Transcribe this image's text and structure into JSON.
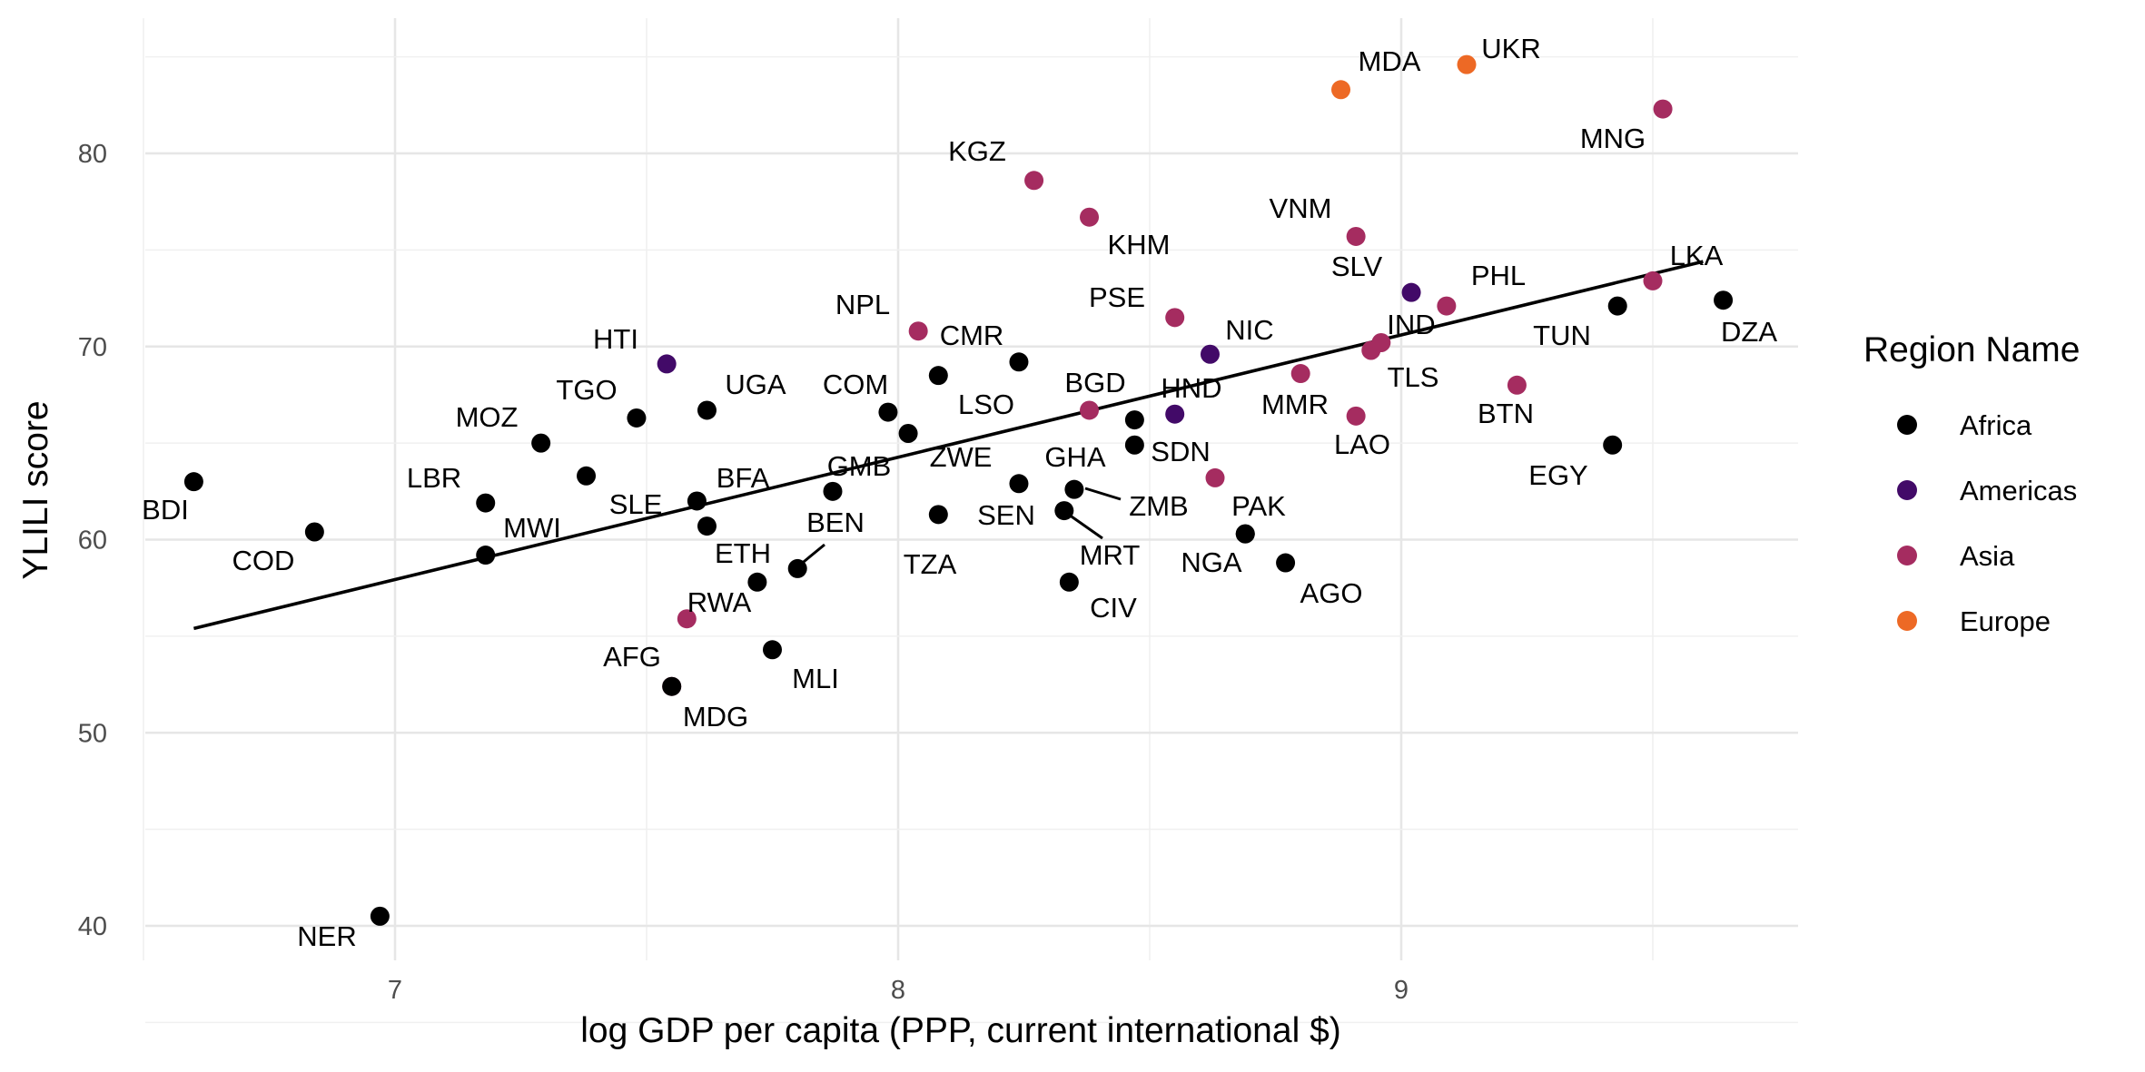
{
  "chart_data": {
    "type": "scatter",
    "title": "",
    "xlabel": "log GDP per capita (PPP, current international $)",
    "ylabel": "YLILI score",
    "xlim": [
      6.5,
      9.8
    ],
    "ylim": [
      39,
      87
    ],
    "x_ticks": [
      7,
      8,
      9
    ],
    "y_ticks": [
      40,
      50,
      60,
      70,
      80
    ],
    "grid": true,
    "legend": {
      "title": "Region Name",
      "position": "right",
      "entries": [
        {
          "name": "Africa",
          "color": "#000000"
        },
        {
          "name": "Americas",
          "color": "#420a68"
        },
        {
          "name": "Asia",
          "color": "#a52c60"
        },
        {
          "name": "Europe",
          "color": "#ed6925"
        }
      ]
    },
    "trend_line": {
      "x": [
        6.6,
        9.6
      ],
      "y": [
        55.4,
        74.4
      ]
    },
    "points": [
      {
        "label": "BDI",
        "region": "Africa",
        "x": 6.6,
        "y": 63.0
      },
      {
        "label": "COD",
        "region": "Africa",
        "x": 6.84,
        "y": 60.4
      },
      {
        "label": "NER",
        "region": "Africa",
        "x": 6.97,
        "y": 40.5
      },
      {
        "label": "LBR",
        "region": "Africa",
        "x": 7.18,
        "y": 61.9
      },
      {
        "label": "MWI",
        "region": "Africa",
        "x": 7.18,
        "y": 59.2
      },
      {
        "label": "MOZ",
        "region": "Africa",
        "x": 7.29,
        "y": 65.0
      },
      {
        "label": "SLE",
        "region": "Africa",
        "x": 7.38,
        "y": 63.3
      },
      {
        "label": "TGO",
        "region": "Africa",
        "x": 7.48,
        "y": 66.3
      },
      {
        "label": "HTI",
        "region": "Americas",
        "x": 7.54,
        "y": 69.1
      },
      {
        "label": "AFG",
        "region": "Asia",
        "x": 7.55,
        "y": 52.4
      },
      {
        "label": "RWA",
        "region": "Asia",
        "x": 7.58,
        "y": 55.9
      },
      {
        "label": "MDG",
        "region": "Africa",
        "x": 7.55,
        "y": 52.4
      },
      {
        "label": "BFA",
        "region": "Africa",
        "x": 7.6,
        "y": 62.0
      },
      {
        "label": "UGA",
        "region": "Africa",
        "x": 7.62,
        "y": 66.7
      },
      {
        "label": "ETH",
        "region": "Africa",
        "x": 7.62,
        "y": 60.7
      },
      {
        "label": "MLI",
        "region": "Africa",
        "x": 7.75,
        "y": 54.3
      },
      {
        "label": "ETH",
        "region": "Africa",
        "x": 7.72,
        "y": 57.8
      },
      {
        "label": "BEN",
        "region": "Africa",
        "x": 7.8,
        "y": 58.5
      },
      {
        "label": "GMB",
        "region": "Africa",
        "x": 7.87,
        "y": 62.5
      },
      {
        "label": "COM",
        "region": "Africa",
        "x": 7.98,
        "y": 66.6
      },
      {
        "label": "NPL",
        "region": "Asia",
        "x": 8.04,
        "y": 70.8
      },
      {
        "label": "ZWE",
        "region": "Africa",
        "x": 8.02,
        "y": 65.5
      },
      {
        "label": "LSO",
        "region": "Africa",
        "x": 8.08,
        "y": 68.5
      },
      {
        "label": "TZA",
        "region": "Africa",
        "x": 8.08,
        "y": 61.3
      },
      {
        "label": "CMR",
        "region": "Africa",
        "x": 8.24,
        "y": 69.2
      },
      {
        "label": "GHA",
        "region": "Africa",
        "x": 8.24,
        "y": 62.9
      },
      {
        "label": "KGZ",
        "region": "Asia",
        "x": 8.27,
        "y": 78.6
      },
      {
        "label": "SEN",
        "region": "Africa",
        "x": 8.33,
        "y": 61.5
      },
      {
        "label": "CIV",
        "region": "Africa",
        "x": 8.34,
        "y": 57.8
      },
      {
        "label": "ZMB",
        "region": "Africa",
        "x": 8.35,
        "y": 62.6
      },
      {
        "label": "KHM",
        "region": "Asia",
        "x": 8.38,
        "y": 76.7
      },
      {
        "label": "BGD",
        "region": "Asia",
        "x": 8.38,
        "y": 66.7
      },
      {
        "label": "SDN",
        "region": "Africa",
        "x": 8.47,
        "y": 66.2
      },
      {
        "label": "MRT",
        "region": "Africa",
        "x": 8.47,
        "y": 64.9
      },
      {
        "label": "PSE",
        "region": "Asia",
        "x": 8.55,
        "y": 71.5
      },
      {
        "label": "HND",
        "region": "Americas",
        "x": 8.55,
        "y": 66.5
      },
      {
        "label": "NIC",
        "region": "Americas",
        "x": 8.62,
        "y": 69.6
      },
      {
        "label": "SDN",
        "region": "Asia",
        "x": 8.63,
        "y": 63.2
      },
      {
        "label": "PAK",
        "region": "Africa",
        "x": 8.69,
        "y": 60.3
      },
      {
        "label": "NGA",
        "region": "Africa",
        "x": 8.69,
        "y": 60.3
      },
      {
        "label": "AGO",
        "region": "Africa",
        "x": 8.77,
        "y": 58.8
      },
      {
        "label": "MMR",
        "region": "Asia",
        "x": 8.8,
        "y": 68.6
      },
      {
        "label": "MDA",
        "region": "Europe",
        "x": 8.88,
        "y": 83.3
      },
      {
        "label": "LAO",
        "region": "Asia",
        "x": 8.91,
        "y": 66.4
      },
      {
        "label": "SLV",
        "region": "Asia",
        "x": 8.91,
        "y": 75.7
      },
      {
        "label": "TLS",
        "region": "Asia",
        "x": 8.94,
        "y": 69.8
      },
      {
        "label": "IND",
        "region": "Asia",
        "x": 8.96,
        "y": 70.2
      },
      {
        "label": "VNM",
        "region": "Americas",
        "x": 9.02,
        "y": 72.8
      },
      {
        "label": "PHL",
        "region": "Asia",
        "x": 9.09,
        "y": 72.1
      },
      {
        "label": "UKR",
        "region": "Europe",
        "x": 9.13,
        "y": 84.6
      },
      {
        "label": "BTN",
        "region": "Asia",
        "x": 9.23,
        "y": 68.0
      },
      {
        "label": "EGY",
        "region": "Africa",
        "x": 9.42,
        "y": 64.9
      },
      {
        "label": "TUN",
        "region": "Africa",
        "x": 9.43,
        "y": 72.1
      },
      {
        "label": "LKA",
        "region": "Asia",
        "x": 9.5,
        "y": 73.4
      },
      {
        "label": "MNG",
        "region": "Asia",
        "x": 9.52,
        "y": 82.3
      },
      {
        "label": "DZA",
        "region": "Africa",
        "x": 9.64,
        "y": 72.4
      }
    ]
  }
}
